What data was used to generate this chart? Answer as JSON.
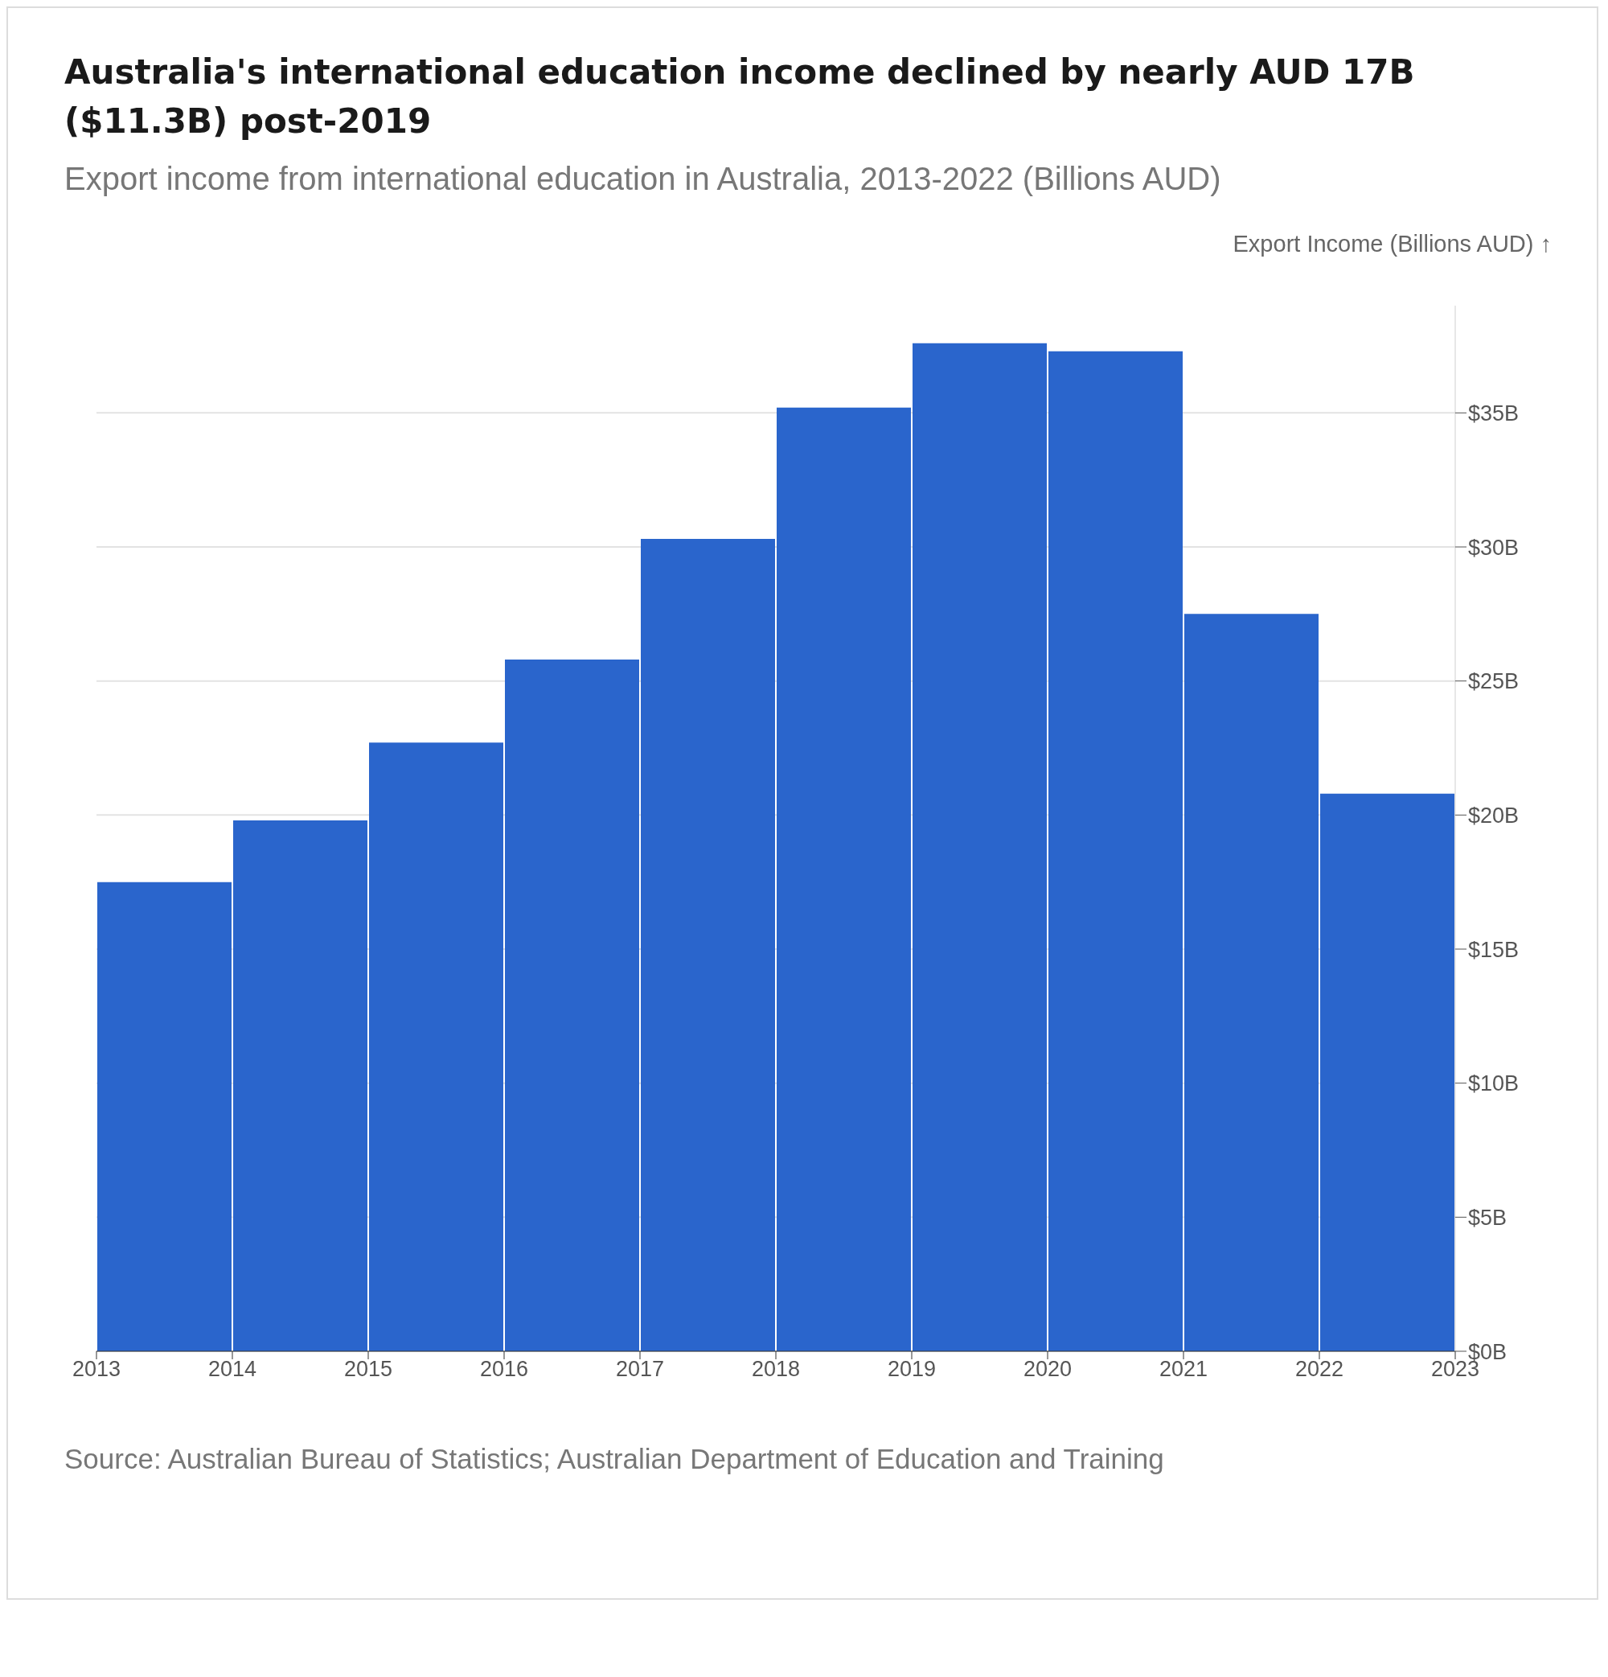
{
  "chart_data": {
    "type": "histogram",
    "title": "Australia's international education income declined by nearly AUD 17B ($11.3B) post-2019",
    "subtitle": "Export income from international education in Australia, 2013-2022 (Billions AUD)",
    "ylabel": "Export Income (Billions AUD) ↑",
    "annotations": [
      "Source: Australian Bureau of Statistics; Australian Department of Education and Training"
    ],
    "bins": [
      2013,
      2014,
      2015,
      2016,
      2017,
      2018,
      2019,
      2020,
      2021,
      2022,
      2023
    ],
    "values": [
      17.5,
      19.8,
      22.7,
      25.8,
      30.3,
      35.2,
      37.6,
      37.3,
      27.5,
      20.8
    ],
    "color": "#2a65cc",
    "xlim": [
      2013,
      2023
    ],
    "xticks": [
      2013,
      2014,
      2015,
      2016,
      2017,
      2018,
      2019,
      2020,
      2021,
      2022,
      2023
    ],
    "ylim": [
      0,
      39
    ],
    "yticks": [
      {
        "value": 0,
        "label": "$0B"
      },
      {
        "value": 5,
        "label": "$5B"
      },
      {
        "value": 10,
        "label": "$10B"
      },
      {
        "value": 15,
        "label": "$15B"
      },
      {
        "value": 20,
        "label": "$20B"
      },
      {
        "value": 25,
        "label": "$25B"
      },
      {
        "value": 30,
        "label": "$30B"
      },
      {
        "value": 35,
        "label": "$35B"
      }
    ],
    "grid": "y",
    "legend": false
  }
}
